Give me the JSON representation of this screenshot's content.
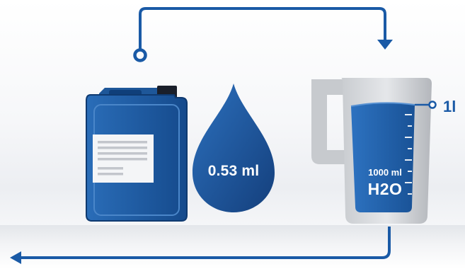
{
  "canister": {
    "icon": "canister-icon"
  },
  "droplet": {
    "icon": "droplet-icon",
    "label": "0.53 ml"
  },
  "beaker": {
    "icon": "measuring-jug-icon",
    "volume_label": "1000 ml",
    "content_label": "H2O"
  },
  "marker": {
    "label": "1l"
  },
  "arrows": {
    "top": "arrow-top-icon",
    "bottom": "arrow-bottom-icon"
  },
  "colors": {
    "primary_blue": "#1a5aa6",
    "dark_blue": "#0f3f7a",
    "grey": "#b9bcc1"
  }
}
